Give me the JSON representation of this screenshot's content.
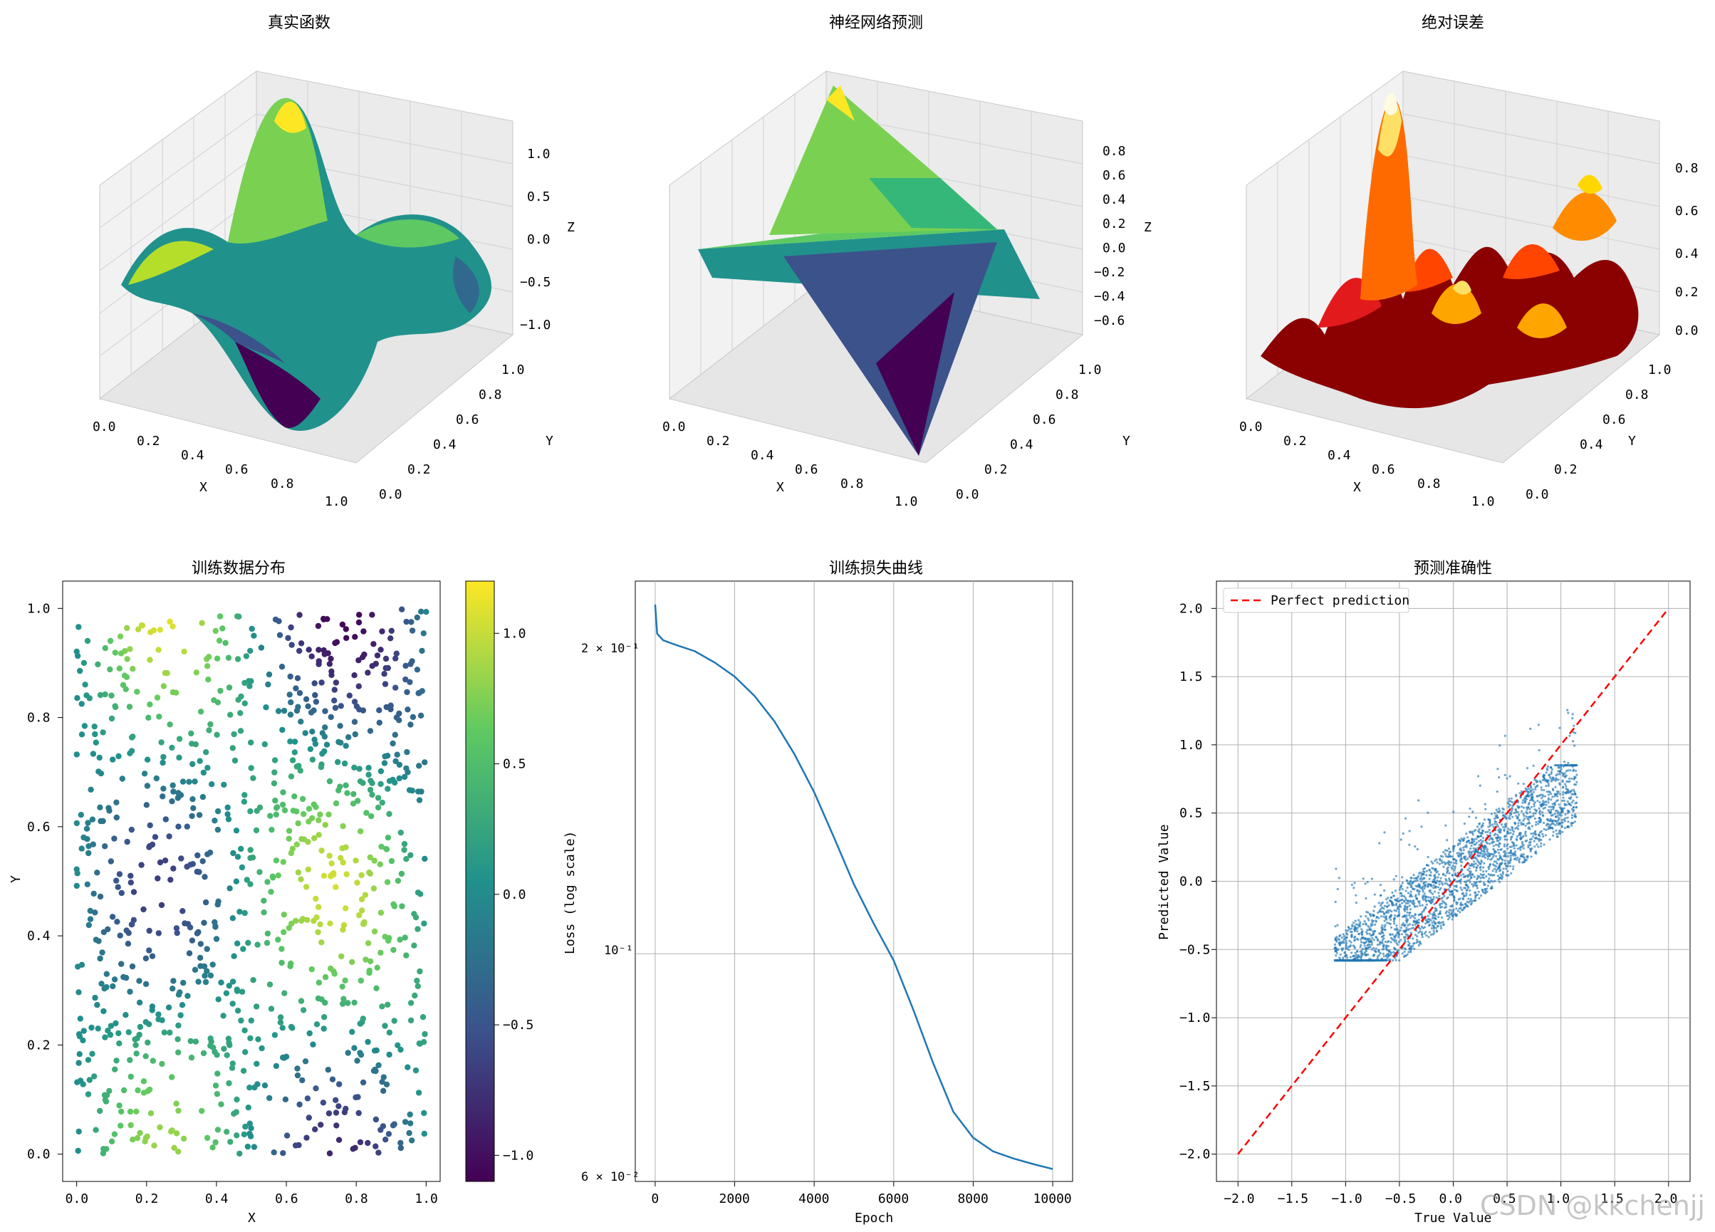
{
  "watermark": "CSDN @kkchenjj",
  "chart_data": [
    {
      "id": "true-function",
      "type": "surface3d",
      "title": "真实函数",
      "xlabel": "X",
      "ylabel": "Y",
      "zlabel": "Z",
      "xticks": [
        "0.0",
        "0.2",
        "0.4",
        "0.6",
        "0.8",
        "1.0"
      ],
      "yticks": [
        "0.0",
        "0.2",
        "0.4",
        "0.6",
        "0.8",
        "1.0"
      ],
      "zticks": [
        "1.0",
        "0.5",
        "0.0",
        "−0.5",
        "−1.0"
      ],
      "colormap": "viridis"
    },
    {
      "id": "nn-prediction",
      "type": "surface3d",
      "title": "神经网络预测",
      "xlabel": "X",
      "ylabel": "Y",
      "zlabel": "Z",
      "xticks": [
        "0.0",
        "0.2",
        "0.4",
        "0.6",
        "0.8",
        "1.0"
      ],
      "yticks": [
        "0.0",
        "0.2",
        "0.4",
        "0.6",
        "0.8",
        "1.0"
      ],
      "zticks": [
        "0.8",
        "0.6",
        "0.4",
        "0.2",
        "0.0",
        "−0.2",
        "−0.4",
        "−0.6"
      ],
      "colormap": "viridis"
    },
    {
      "id": "abs-error",
      "type": "surface3d",
      "title": "绝对误差",
      "xlabel": "X",
      "ylabel": "Y",
      "xticks": [
        "0.0",
        "0.2",
        "0.4",
        "0.6",
        "0.8",
        "1.0"
      ],
      "yticks": [
        "0.0",
        "0.2",
        "0.4",
        "0.6",
        "0.8",
        "1.0"
      ],
      "zticks": [
        "0.8",
        "0.6",
        "0.4",
        "0.2",
        "0.0"
      ],
      "colormap": "hot"
    },
    {
      "id": "training-data",
      "type": "scatter",
      "title": "训练数据分布",
      "xlabel": "X",
      "ylabel": "Y",
      "xlim": [
        0,
        1
      ],
      "ylim": [
        0,
        1
      ],
      "xticks": [
        "0.0",
        "0.2",
        "0.4",
        "0.6",
        "0.8",
        "1.0"
      ],
      "yticks": [
        "0.0",
        "0.2",
        "0.4",
        "0.6",
        "0.8",
        "1.0"
      ],
      "colorbar_ticks": [
        "1.0",
        "0.5",
        "0.0",
        "−0.5",
        "−1.0"
      ],
      "colorbar_range": [
        -1.1,
        1.2
      ],
      "colormap": "viridis",
      "n_points": 1000
    },
    {
      "id": "loss-curve",
      "type": "line",
      "title": "训练损失曲线",
      "xlabel": "Epoch",
      "ylabel": "Loss (log scale)",
      "xticks": [
        "0",
        "2000",
        "4000",
        "6000",
        "8000",
        "10000"
      ],
      "ytick_labels": [
        "2 × 10⁻¹",
        "10⁻¹",
        "6 × 10⁻²"
      ],
      "yscale": "log",
      "grid": true,
      "x": [
        0,
        50,
        200,
        500,
        1000,
        1500,
        2000,
        2500,
        3000,
        3500,
        4000,
        4500,
        5000,
        5500,
        6000,
        6500,
        7000,
        7500,
        8000,
        8500,
        9000,
        9500,
        10000
      ],
      "y": [
        0.22,
        0.206,
        0.203,
        0.201,
        0.198,
        0.193,
        0.187,
        0.179,
        0.169,
        0.157,
        0.144,
        0.13,
        0.117,
        0.107,
        0.0985,
        0.088,
        0.078,
        0.07,
        0.066,
        0.064,
        0.063,
        0.0622,
        0.0615
      ],
      "line_color": "#1f77b4"
    },
    {
      "id": "prediction-accuracy",
      "type": "scatter",
      "title": "预测准确性",
      "xlabel": "True Value",
      "ylabel": "Predicted Value",
      "xlim": [
        -2.2,
        2.2
      ],
      "ylim": [
        -2.2,
        2.2
      ],
      "xticks": [
        "−2.0",
        "−1.5",
        "−1.0",
        "−0.5",
        "0.0",
        "0.5",
        "1.0",
        "1.5",
        "2.0"
      ],
      "yticks": [
        "2.0",
        "1.5",
        "1.0",
        "0.5",
        "0.0",
        "−0.5",
        "−1.0",
        "−1.5",
        "−2.0"
      ],
      "legend": "Perfect prediction",
      "legend_position": "top-left",
      "grid": true,
      "point_color": "#1f77b4",
      "reference_line_color": "#ff0000"
    }
  ]
}
